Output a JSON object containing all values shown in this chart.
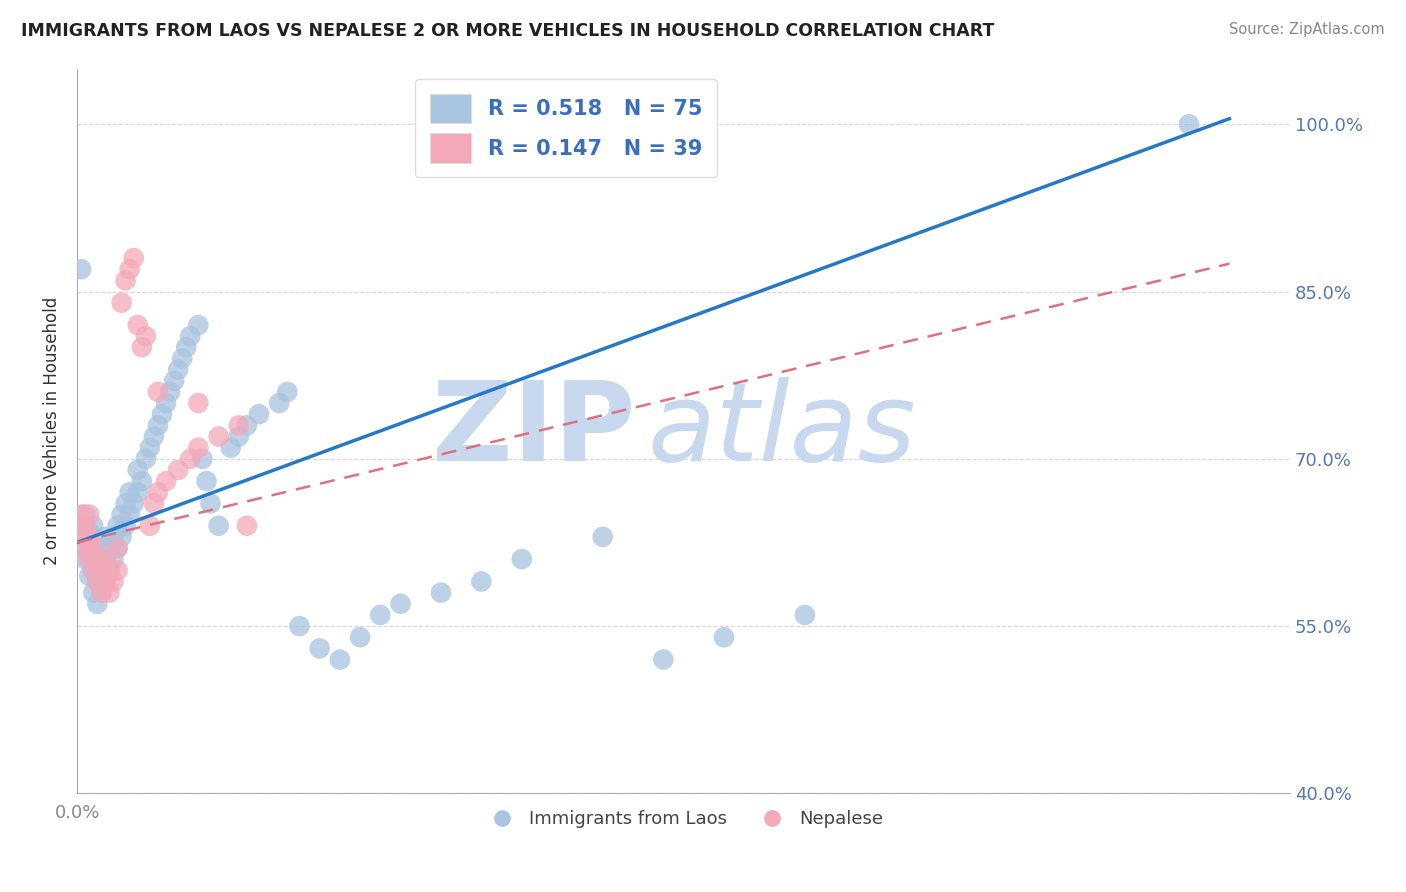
{
  "title": "IMMIGRANTS FROM LAOS VS NEPALESE 2 OR MORE VEHICLES IN HOUSEHOLD CORRELATION CHART",
  "source": "Source: ZipAtlas.com",
  "ylabel": "2 or more Vehicles in Household",
  "xlim": [
    0.0,
    0.3
  ],
  "ylim": [
    0.4,
    1.05
  ],
  "xtick_positions": [
    0.0,
    0.05,
    0.1,
    0.15,
    0.2,
    0.25,
    0.3
  ],
  "ytick_positions": [
    0.4,
    0.55,
    0.7,
    0.85,
    1.0
  ],
  "ytick_labels": [
    "40.0%",
    "55.0%",
    "70.0%",
    "85.0%",
    "100.0%"
  ],
  "blue_R": 0.518,
  "blue_N": 75,
  "pink_R": 0.147,
  "pink_N": 39,
  "blue_color": "#a8c4e0",
  "blue_line_color": "#2878c8",
  "pink_color": "#f4a8b8",
  "pink_line_color": "#e07080",
  "legend_text_color": "#3a6fbf",
  "watermark_zip": "ZIP",
  "watermark_atlas": "atlas",
  "watermark_color": "#c8d8ee",
  "blue_line_x0": 0.0,
  "blue_line_y0": 0.625,
  "blue_line_x1": 0.285,
  "blue_line_y1": 1.005,
  "pink_line_x0": 0.0,
  "pink_line_y0": 0.625,
  "pink_line_x1": 0.285,
  "pink_line_y1": 0.875,
  "blue_pts_x": [
    0.001,
    0.001,
    0.002,
    0.002,
    0.002,
    0.003,
    0.003,
    0.003,
    0.004,
    0.004,
    0.004,
    0.004,
    0.005,
    0.005,
    0.005,
    0.006,
    0.006,
    0.006,
    0.007,
    0.007,
    0.007,
    0.008,
    0.008,
    0.009,
    0.009,
    0.01,
    0.01,
    0.011,
    0.011,
    0.012,
    0.012,
    0.013,
    0.013,
    0.014,
    0.015,
    0.015,
    0.016,
    0.017,
    0.018,
    0.019,
    0.02,
    0.021,
    0.022,
    0.023,
    0.024,
    0.025,
    0.026,
    0.027,
    0.028,
    0.03,
    0.031,
    0.032,
    0.033,
    0.035,
    0.038,
    0.04,
    0.042,
    0.045,
    0.05,
    0.052,
    0.055,
    0.06,
    0.065,
    0.07,
    0.075,
    0.08,
    0.09,
    0.1,
    0.11,
    0.13,
    0.145,
    0.16,
    0.18,
    0.275,
    0.001
  ],
  "blue_pts_y": [
    0.62,
    0.64,
    0.61,
    0.63,
    0.65,
    0.595,
    0.615,
    0.635,
    0.58,
    0.6,
    0.62,
    0.64,
    0.57,
    0.59,
    0.61,
    0.58,
    0.6,
    0.62,
    0.59,
    0.61,
    0.63,
    0.6,
    0.62,
    0.61,
    0.63,
    0.62,
    0.64,
    0.63,
    0.65,
    0.64,
    0.66,
    0.65,
    0.67,
    0.66,
    0.67,
    0.69,
    0.68,
    0.7,
    0.71,
    0.72,
    0.73,
    0.74,
    0.75,
    0.76,
    0.77,
    0.78,
    0.79,
    0.8,
    0.81,
    0.82,
    0.7,
    0.68,
    0.66,
    0.64,
    0.71,
    0.72,
    0.73,
    0.74,
    0.75,
    0.76,
    0.55,
    0.53,
    0.52,
    0.54,
    0.56,
    0.57,
    0.58,
    0.59,
    0.61,
    0.63,
    0.52,
    0.54,
    0.56,
    1.0,
    0.87
  ],
  "pink_pts_x": [
    0.001,
    0.001,
    0.002,
    0.002,
    0.003,
    0.003,
    0.003,
    0.004,
    0.004,
    0.005,
    0.005,
    0.006,
    0.006,
    0.007,
    0.007,
    0.008,
    0.008,
    0.009,
    0.01,
    0.01,
    0.011,
    0.012,
    0.013,
    0.014,
    0.015,
    0.016,
    0.017,
    0.018,
    0.019,
    0.02,
    0.022,
    0.025,
    0.028,
    0.03,
    0.035,
    0.04,
    0.042,
    0.03,
    0.02
  ],
  "pink_pts_y": [
    0.63,
    0.65,
    0.62,
    0.64,
    0.61,
    0.63,
    0.65,
    0.6,
    0.62,
    0.59,
    0.61,
    0.58,
    0.6,
    0.59,
    0.61,
    0.58,
    0.6,
    0.59,
    0.6,
    0.62,
    0.84,
    0.86,
    0.87,
    0.88,
    0.82,
    0.8,
    0.81,
    0.64,
    0.66,
    0.67,
    0.68,
    0.69,
    0.7,
    0.71,
    0.72,
    0.73,
    0.64,
    0.75,
    0.76
  ]
}
